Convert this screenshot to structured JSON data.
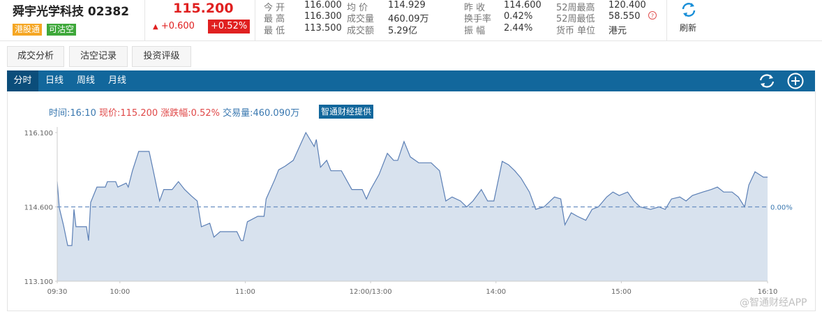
{
  "header": {
    "name": "舜宇光学科技 02382",
    "tags": [
      "港股通",
      "可沽空"
    ],
    "price": "115.200",
    "change": "+0.600",
    "change_pct": "+0.52%",
    "stats": [
      {
        "label": "今 开",
        "value": "116.000"
      },
      {
        "label": "最 高",
        "value": "116.300"
      },
      {
        "label": "最 低",
        "value": "113.500"
      },
      {
        "label": "均 价",
        "value": "114.929"
      },
      {
        "label": "成交量",
        "value": "460.09万"
      },
      {
        "label": "成交额",
        "value": "5.29亿"
      },
      {
        "label": "昨 收",
        "value": "114.600"
      },
      {
        "label": "换手率",
        "value": "0.42%"
      },
      {
        "label": "振 幅",
        "value": "2.44%"
      },
      {
        "label": "52周最高",
        "value": "120.400"
      },
      {
        "label": "52周最低",
        "value": "58.550"
      },
      {
        "label": "货币 单位",
        "value": "港元"
      }
    ],
    "refresh": "刷新"
  },
  "tabs": [
    "成交分析",
    "沽空记录",
    "投资评级"
  ],
  "period_tabs": [
    "分时",
    "日线",
    "周线",
    "月线"
  ],
  "chart_data": {
    "type": "line",
    "info": {
      "time": "时间:16:10",
      "price": "现价:115.200",
      "change": "涨跌幅:0.52%",
      "volume": "交易量:460.090万",
      "source": "智通财经提供"
    },
    "x": [
      0,
      1,
      3,
      5,
      7,
      8,
      9,
      14,
      15,
      16,
      19,
      23,
      24,
      28,
      29,
      33,
      34,
      36,
      39,
      44,
      46,
      49,
      51,
      55,
      58,
      61,
      64,
      67,
      69,
      73,
      75,
      78,
      86,
      88,
      89,
      91,
      96,
      99,
      100,
      104,
      106,
      109,
      113,
      116,
      119,
      123,
      124,
      126,
      129,
      131,
      136,
      141,
      146,
      148,
      150,
      154,
      158,
      161,
      163,
      166,
      169,
      173,
      179,
      183,
      186,
      189,
      193,
      196,
      199,
      203,
      206,
      209,
      213,
      216,
      219,
      222,
      226,
      229,
      233,
      238,
      241,
      243,
      246,
      249,
      253,
      256,
      259,
      263,
      266,
      269,
      273,
      276,
      279,
      284,
      288,
      291,
      294,
      298,
      301,
      304,
      309,
      313,
      316,
      319,
      323,
      326,
      329,
      331,
      334,
      338,
      340
    ],
    "values": [
      115.11,
      114.58,
      114.23,
      113.82,
      113.82,
      114.55,
      114.2,
      114.2,
      113.92,
      114.69,
      115.0,
      115.0,
      115.11,
      115.11,
      115.0,
      115.08,
      115.0,
      115.33,
      115.72,
      115.72,
      115.33,
      114.72,
      114.95,
      114.95,
      115.11,
      114.95,
      114.83,
      114.72,
      114.2,
      114.27,
      113.99,
      114.1,
      114.1,
      113.92,
      113.92,
      114.3,
      114.41,
      114.41,
      114.76,
      115.14,
      115.35,
      115.42,
      115.54,
      115.82,
      116.1,
      115.82,
      115.96,
      115.4,
      115.54,
      115.33,
      115.33,
      114.95,
      114.95,
      114.76,
      114.95,
      115.25,
      115.68,
      115.54,
      115.54,
      115.92,
      115.61,
      115.49,
      115.49,
      115.33,
      114.72,
      114.8,
      114.72,
      114.6,
      114.72,
      114.95,
      114.72,
      114.72,
      115.52,
      115.45,
      115.33,
      115.18,
      114.9,
      114.55,
      114.6,
      114.8,
      114.76,
      114.24,
      114.48,
      114.41,
      114.33,
      114.55,
      114.6,
      114.8,
      114.9,
      114.83,
      114.9,
      114.72,
      114.6,
      114.55,
      114.6,
      114.55,
      114.76,
      114.8,
      114.72,
      114.83,
      114.9,
      114.95,
      115.0,
      114.9,
      114.9,
      114.8,
      114.6,
      115.04,
      115.31,
      115.2,
      115.2
    ],
    "color": "#5b7fb5",
    "fill": "#d8e2ee",
    "xlim": [
      0,
      340
    ],
    "xticks": [
      {
        "value": 0,
        "label": "09:30"
      },
      {
        "value": 30,
        "label": "10:00"
      },
      {
        "value": 90,
        "label": "11:00"
      },
      {
        "value": 150,
        "label": "12:00/13:00"
      },
      {
        "value": 210,
        "label": "14:00"
      },
      {
        "value": 270,
        "label": "15:00"
      },
      {
        "value": 340,
        "label": "16:10"
      }
    ],
    "ylim": [
      113.1,
      116.1
    ],
    "yticks": [
      {
        "value": 113.1,
        "label": "113.100"
      },
      {
        "value": 114.6,
        "label": "114.600"
      },
      {
        "value": 116.1,
        "label": "116.100"
      }
    ],
    "reference": {
      "value": 114.6,
      "label": "0.00%"
    }
  },
  "watermark": "@智通财经APP"
}
